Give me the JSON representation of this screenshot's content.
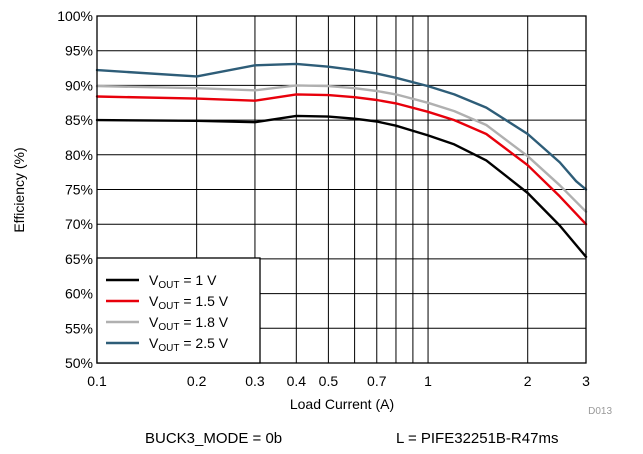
{
  "chart_data": {
    "type": "line",
    "title": "",
    "xlabel": "Load Current (A)",
    "ylabel": "Efficiency (%)",
    "x_scale": "log",
    "xlim": [
      0.1,
      3
    ],
    "ylim": [
      50,
      100
    ],
    "grid": true,
    "legend_position": "bottom-left",
    "x_ticks": [
      {
        "value": 0.1,
        "label": "0.1"
      },
      {
        "value": 0.2,
        "label": "0.2"
      },
      {
        "value": 0.3,
        "label": "0.3"
      },
      {
        "value": 0.4,
        "label": "0.4"
      },
      {
        "value": 0.5,
        "label": "0.5"
      },
      {
        "value": 0.7,
        "label": "0.7"
      },
      {
        "value": 1,
        "label": "1"
      },
      {
        "value": 2,
        "label": "2"
      },
      {
        "value": 3,
        "label": "3"
      }
    ],
    "x_grid_minor": [
      0.6,
      0.8,
      0.9
    ],
    "y_ticks": [
      {
        "value": 50,
        "label": "50%"
      },
      {
        "value": 55,
        "label": "55%"
      },
      {
        "value": 60,
        "label": "60%"
      },
      {
        "value": 65,
        "label": "65%"
      },
      {
        "value": 70,
        "label": "70%"
      },
      {
        "value": 75,
        "label": "75%"
      },
      {
        "value": 80,
        "label": "80%"
      },
      {
        "value": 85,
        "label": "85%"
      },
      {
        "value": 90,
        "label": "90%"
      },
      {
        "value": 95,
        "label": "95%"
      },
      {
        "value": 100,
        "label": "100%"
      }
    ],
    "series": [
      {
        "name_main": "V",
        "name_sub": "OUT",
        "name_rest": " = 1 V",
        "color": "#000000",
        "x": [
          0.1,
          0.2,
          0.3,
          0.4,
          0.5,
          0.6,
          0.7,
          0.8,
          1.0,
          1.2,
          1.5,
          2.0,
          2.5,
          3.0
        ],
        "y": [
          85.0,
          84.9,
          84.7,
          85.6,
          85.5,
          85.2,
          84.8,
          84.2,
          82.8,
          81.5,
          79.2,
          74.5,
          69.8,
          65.3
        ]
      },
      {
        "name_main": "V",
        "name_sub": "OUT",
        "name_rest": " = 1.5 V",
        "color": "#e8000b",
        "x": [
          0.1,
          0.2,
          0.3,
          0.4,
          0.5,
          0.6,
          0.7,
          0.8,
          1.0,
          1.2,
          1.5,
          2.0,
          2.5,
          3.0
        ],
        "y": [
          88.4,
          88.1,
          87.8,
          88.7,
          88.6,
          88.3,
          87.9,
          87.4,
          86.2,
          85.0,
          83.0,
          78.5,
          74.0,
          70.0
        ]
      },
      {
        "name_main": "V",
        "name_sub": "OUT",
        "name_rest": " = 1.8 V",
        "color": "#b0b0b0",
        "x": [
          0.1,
          0.2,
          0.3,
          0.4,
          0.5,
          0.6,
          0.7,
          0.8,
          1.0,
          1.2,
          1.5,
          2.0,
          2.5,
          3.0
        ],
        "y": [
          89.9,
          89.6,
          89.3,
          90.0,
          89.9,
          89.6,
          89.2,
          88.7,
          87.5,
          86.3,
          84.3,
          79.8,
          75.6,
          71.8
        ]
      },
      {
        "name_main": "V",
        "name_sub": "OUT",
        "name_rest": " = 2.5 V",
        "color": "#2e5d78",
        "x": [
          0.1,
          0.2,
          0.3,
          0.4,
          0.5,
          0.6,
          0.7,
          0.8,
          1.0,
          1.2,
          1.5,
          2.0,
          2.5,
          2.8,
          3.0
        ],
        "y": [
          92.2,
          91.3,
          92.9,
          93.1,
          92.7,
          92.2,
          91.7,
          91.1,
          89.9,
          88.7,
          86.8,
          83.0,
          78.9,
          76.2,
          75.0
        ]
      }
    ]
  },
  "figure_id": "D013",
  "footer": {
    "left": "BUCK3_MODE = 0b",
    "right": "L = PIFE32251B-R47ms"
  }
}
